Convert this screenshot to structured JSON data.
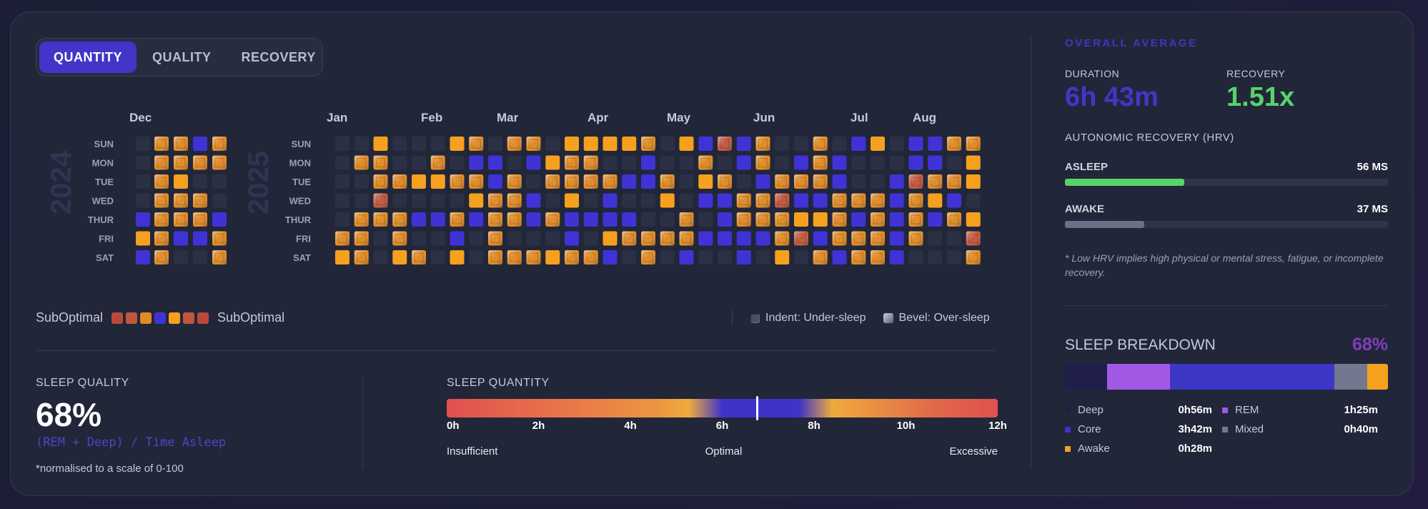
{
  "tabs": [
    {
      "label": "QUANTITY",
      "active": true
    },
    {
      "label": "QUALITY",
      "active": false
    },
    {
      "label": "RECOVERY",
      "active": false
    }
  ],
  "heatmap": {
    "years": [
      "2024",
      "2025"
    ],
    "days": [
      "SUN",
      "MON",
      "TUE",
      "WED",
      "THUR",
      "FRI",
      "SAT"
    ],
    "months": [
      "Dec",
      "Jan",
      "Feb",
      "Mar",
      "Apr",
      "May",
      "Jun",
      "Jul",
      "Aug"
    ],
    "colors": {
      "e": "#2c3044",
      "b": "#3f33d6",
      "o": "#f5a11f",
      "d": "#e08a24",
      "r": "#b94a3a",
      "c": "#c0573c"
    }
  },
  "legend": {
    "left_label": "SubOptimal",
    "right_label": "SubOptimal",
    "swatches": [
      "#b94a3a",
      "#c0573c",
      "#e08a24",
      "#3f33d6",
      "#f5a11f",
      "#c0573c",
      "#b94a3a"
    ],
    "indent_label": "Indent: Under-sleep",
    "bevel_label": "Bevel: Over-sleep"
  },
  "sleep_quality": {
    "caption": "SLEEP QUALITY",
    "value": "68%",
    "formula": "(REM + Deep) / Time Asleep",
    "note": "*normalised to a scale of 0-100"
  },
  "sleep_quantity": {
    "caption": "SLEEP QUANTITY",
    "ticks": [
      "0h",
      "2h",
      "4h",
      "6h",
      "8h",
      "10h",
      "12h"
    ],
    "marker_hours": 6.75,
    "zones": [
      "Insufficient",
      "Optimal",
      "Excessive"
    ]
  },
  "overall": {
    "title": "OVERALL AVERAGE",
    "duration_label": "DURATION",
    "duration_value": "6h 43m",
    "recovery_label": "RECOVERY",
    "recovery_value": "1.51x",
    "duration_color": "#4137c8",
    "recovery_color": "#57d36a"
  },
  "hrv": {
    "title": "AUTONOMIC RECOVERY (HRV)",
    "asleep_label": "ASLEEP",
    "asleep_value": "56 MS",
    "asleep_fraction": 0.37,
    "awake_label": "AWAKE",
    "awake_value": "37 MS",
    "awake_fraction": 0.245,
    "note": "* Low HRV implies high physical or mental stress, fatigue, or incomplete recovery."
  },
  "breakdown": {
    "title": "SLEEP BREAKDOWN",
    "percent": "68%",
    "segments": [
      {
        "name": "Deep",
        "fraction": 0.13,
        "color": "#1f1f4a"
      },
      {
        "name": "REM",
        "fraction": 0.195,
        "color": "#a25ae6"
      },
      {
        "name": "Core",
        "fraction": 0.51,
        "color": "#3e36c4"
      },
      {
        "name": "Mixed",
        "fraction": 0.1,
        "color": "#72798f"
      },
      {
        "name": "Awake",
        "fraction": 0.065,
        "color": "#f5a11f"
      }
    ],
    "items": [
      {
        "name": "Deep",
        "value": "0h56m",
        "color": "#1f1f4a"
      },
      {
        "name": "REM",
        "value": "1h25m",
        "color": "#a25ae6"
      },
      {
        "name": "Core",
        "value": "3h42m",
        "color": "#3e36c4"
      },
      {
        "name": "Mixed",
        "value": "0h40m",
        "color": "#72798f"
      },
      {
        "name": "Awake",
        "value": "0h28m",
        "color": "#f5a11f"
      }
    ]
  }
}
